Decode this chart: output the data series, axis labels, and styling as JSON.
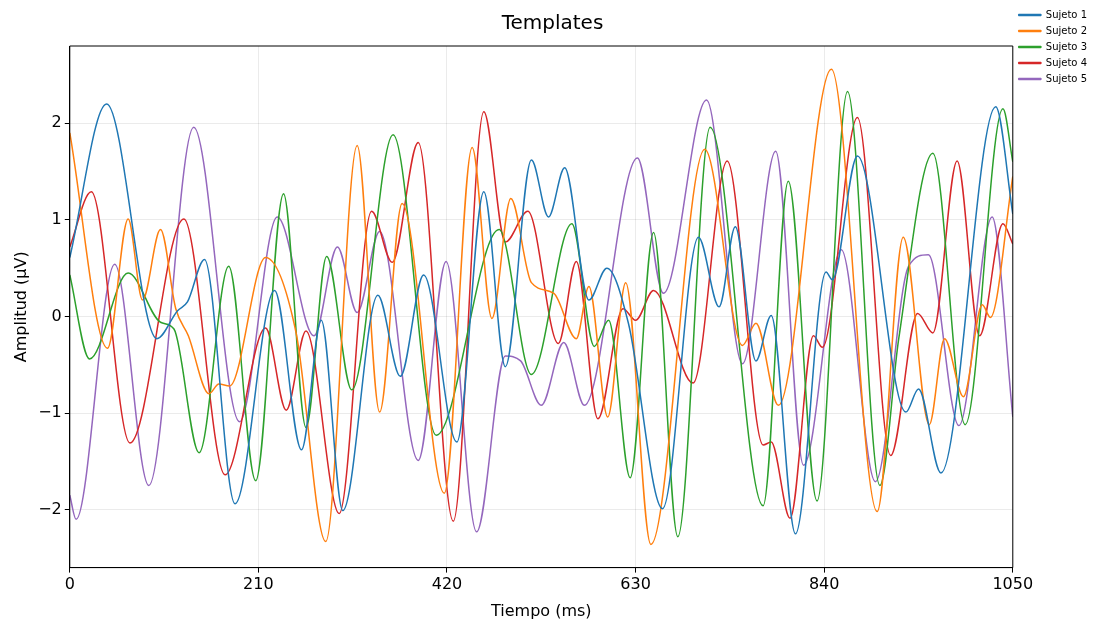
{
  "chart_data": {
    "type": "line",
    "title": "Templates",
    "xlabel": "Tiempo (ms)",
    "ylabel": "Amplitud (μV)",
    "xlim": [
      0,
      1050
    ],
    "xticks": [
      0,
      210,
      420,
      630,
      840,
      1050
    ],
    "ylim": [
      -2.6,
      2.8
    ],
    "yticks": [
      -2,
      -1,
      0,
      1,
      2
    ],
    "grid": true,
    "legend": "top right",
    "marker": "none",
    "line_style": "solid",
    "series": [
      {
        "name": "Sujeto 1",
        "color": "#1f77b4",
        "x": [
          0,
          41,
          97,
          120,
          131,
          150,
          184,
          228,
          258,
          280,
          304,
          343,
          368,
          394,
          431,
          461,
          485,
          514,
          533,
          551,
          578,
          598,
          622,
          660,
          700,
          723,
          741,
          764,
          781,
          808,
          842,
          849,
          877,
          931,
          945,
          970,
          1031,
          1050
        ],
        "values": [
          0.61,
          2.2,
          -0.23,
          0.06,
          0.15,
          0.59,
          -1.94,
          0.27,
          -1.38,
          -0.04,
          -2.01,
          0.22,
          -0.62,
          0.43,
          -1.3,
          1.29,
          -0.52,
          1.62,
          1.03,
          1.54,
          0.17,
          0.5,
          -0.07,
          -1.99,
          0.82,
          0.1,
          0.93,
          -0.46,
          0.01,
          -2.25,
          0.46,
          0.38,
          1.66,
          -0.99,
          -0.75,
          -1.62,
          2.17,
          1.06
        ]
      },
      {
        "name": "Sujeto 2",
        "color": "#ff7f0e",
        "x": [
          0,
          42,
          65,
          81,
          101,
          118,
          132,
          155,
          166,
          178,
          218,
          252,
          285,
          320,
          345,
          370,
          417,
          448,
          470,
          491,
          514,
          539,
          564,
          578,
          599,
          619,
          647,
          707,
          749,
          764,
          789,
          848,
          899,
          928,
          957,
          974,
          995,
          1016,
          1025,
          1050
        ],
        "values": [
          1.9,
          -0.33,
          1.01,
          0.17,
          0.9,
          0.08,
          -0.2,
          -0.8,
          -0.7,
          -0.72,
          0.61,
          -0.17,
          -2.33,
          1.77,
          -0.99,
          1.17,
          -1.83,
          1.75,
          -0.02,
          1.22,
          0.35,
          0.24,
          -0.23,
          0.31,
          -1.04,
          0.35,
          -2.36,
          1.73,
          -0.3,
          -0.07,
          -0.92,
          2.56,
          -2.02,
          0.82,
          -1.12,
          -0.23,
          -0.83,
          0.12,
          -0.01,
          1.45
        ]
      },
      {
        "name": "Sujeto 3",
        "color": "#2ca02c",
        "x": [
          0,
          22,
          65,
          101,
          116,
          144,
          177,
          207,
          238,
          263,
          286,
          314,
          360,
          408,
          478,
          514,
          559,
          584,
          600,
          624,
          650,
          677,
          713,
          772,
          800,
          832,
          866,
          902,
          923,
          961,
          997,
          1039,
          1050
        ],
        "values": [
          0.43,
          -0.44,
          0.45,
          -0.06,
          -0.13,
          -1.41,
          0.52,
          -1.7,
          1.27,
          -1.15,
          0.62,
          -0.76,
          1.88,
          -1.23,
          0.9,
          -0.6,
          0.96,
          -0.31,
          -0.04,
          -1.67,
          0.87,
          -2.28,
          1.96,
          -1.96,
          1.4,
          -1.91,
          2.33,
          -1.75,
          -0.23,
          1.69,
          -1.12,
          2.15,
          1.6
        ]
      },
      {
        "name": "Sujeto 4",
        "color": "#d62728",
        "x": [
          0,
          24,
          67,
          127,
          173,
          218,
          241,
          263,
          300,
          336,
          359,
          388,
          427,
          461,
          485,
          510,
          544,
          564,
          588,
          616,
          630,
          650,
          694,
          732,
          772,
          781,
          802,
          828,
          838,
          877,
          914,
          944,
          961,
          988,
          1013,
          1039,
          1050
        ],
        "values": [
          0.72,
          1.29,
          -1.31,
          1.01,
          -1.64,
          -0.12,
          -0.97,
          -0.15,
          -2.04,
          1.09,
          0.56,
          1.8,
          -2.12,
          2.12,
          0.77,
          1.09,
          -0.28,
          0.57,
          -1.06,
          0.08,
          -0.04,
          0.27,
          -0.69,
          1.61,
          -1.33,
          -1.3,
          -2.09,
          -0.2,
          -0.32,
          2.06,
          -1.44,
          0.03,
          -0.17,
          1.61,
          -0.2,
          0.96,
          0.75
        ]
      },
      {
        "name": "Sujeto 5",
        "color": "#9467bd",
        "x": [
          0,
          7,
          50,
          88,
          138,
          189,
          231,
          272,
          298,
          320,
          345,
          388,
          419,
          453,
          485,
          502,
          525,
          550,
          573,
          632,
          661,
          709,
          749,
          786,
          817,
          859,
          897,
          934,
          956,
          990,
          1027,
          1050
        ],
        "values": [
          -1.85,
          -2.1,
          0.54,
          -1.75,
          1.96,
          -1.09,
          1.03,
          -0.2,
          0.72,
          0.04,
          0.88,
          -1.49,
          0.57,
          -2.23,
          -0.41,
          -0.46,
          -0.92,
          -0.27,
          -0.92,
          1.64,
          0.24,
          2.24,
          -0.49,
          1.71,
          -1.54,
          0.69,
          -1.71,
          0.52,
          0.64,
          -1.13,
          1.03,
          -1.04
        ]
      }
    ]
  }
}
